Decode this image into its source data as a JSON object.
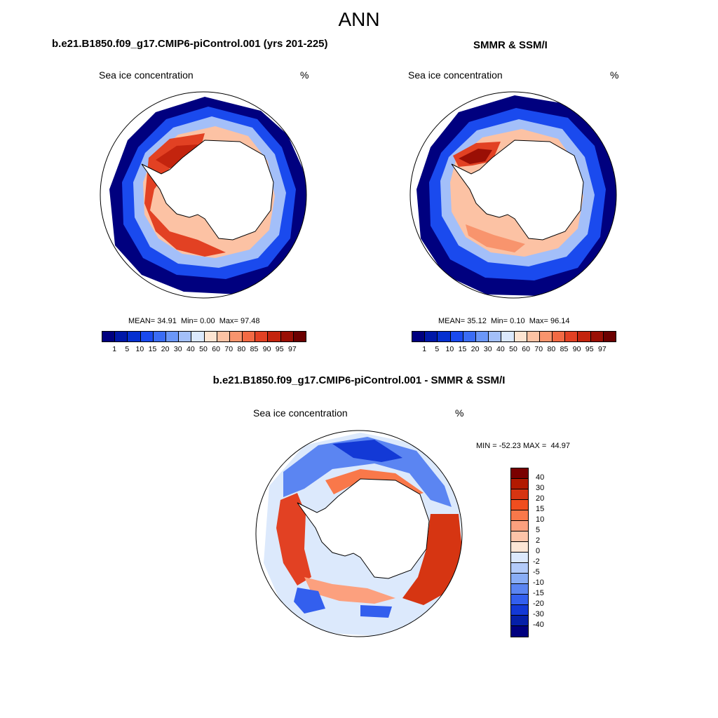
{
  "figure": {
    "title": "ANN"
  },
  "panels": [
    {
      "title": "b.e21.B1850.f09_g17.CMIP6-piControl.001 (yrs 201-225)",
      "subtitle": "Sea ice concentration",
      "units": "%",
      "stats": {
        "mean_label": "MEAN=",
        "mean": "34.91",
        "min_label": "Min=",
        "min": "0.00",
        "max_label": "Max=",
        "max": "97.48"
      }
    },
    {
      "title": "SMMR & SSM/I",
      "subtitle": "Sea ice concentration",
      "units": "%",
      "stats": {
        "mean_label": "MEAN=",
        "mean": "35.12",
        "min_label": "Min=",
        "min": "0.10",
        "max_label": "Max=",
        "max": "96.14"
      }
    },
    {
      "title": "b.e21.B1850.f09_g17.CMIP6-piControl.001 - SMMR & SSM/I",
      "subtitle": "Sea ice concentration",
      "units": "%",
      "stats": {
        "min_label": "MIN =",
        "min": "-52.23",
        "max_label": "MAX =",
        "max": "44.97"
      }
    }
  ],
  "colorbars": {
    "concentration": {
      "labels": [
        "1",
        "5",
        "10",
        "15",
        "20",
        "30",
        "40",
        "50",
        "60",
        "70",
        "80",
        "85",
        "90",
        "95",
        "97"
      ],
      "colors": [
        "#00007f",
        "#0018a8",
        "#0530d0",
        "#1a4aee",
        "#3a6cf5",
        "#6b97f8",
        "#a3bff9",
        "#dbe8fc",
        "#fde4d2",
        "#fcc2a4",
        "#f8946d",
        "#f26a44",
        "#e24123",
        "#c3240e",
        "#9a0f05",
        "#6b0000"
      ]
    },
    "difference": {
      "labels": [
        "40",
        "30",
        "20",
        "15",
        "10",
        "5",
        "2",
        "0",
        "-2",
        "-5",
        "-10",
        "-15",
        "-20",
        "-30",
        "-40"
      ],
      "colors": [
        "#7a0000",
        "#b21a00",
        "#d63512",
        "#f04e1f",
        "#f9784a",
        "#fca07e",
        "#fdc3a8",
        "#fde6d6",
        "#dce9fc",
        "#b3cbfa",
        "#89adf6",
        "#5b85f2",
        "#335fee",
        "#1339d6",
        "#0520a8",
        "#00007f"
      ]
    }
  },
  "colors": {
    "open_ocean": "#00007f",
    "land": "#ffffff",
    "coastline": "#000000",
    "diff_neutral": "#dce9fc"
  }
}
